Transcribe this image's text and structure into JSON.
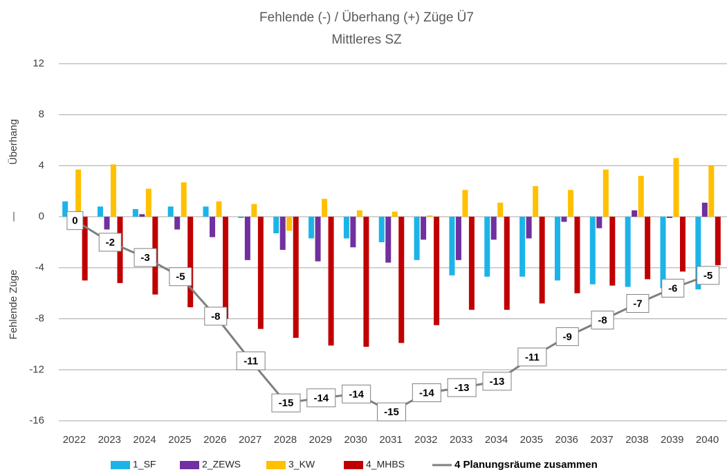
{
  "chart_data": {
    "type": "bar_line",
    "title": "Fehlende (-) / Überhang (+) Züge Ü7",
    "subtitle": "Mittleres SZ",
    "y_label_top": "Überhang",
    "y_label_bottom": "Fehlende Züge",
    "categories": [
      "2022",
      "2023",
      "2024",
      "2025",
      "2026",
      "2027",
      "2028",
      "2029",
      "2030",
      "2031",
      "2032",
      "2033",
      "2034",
      "2035",
      "2036",
      "2037",
      "2038",
      "2039",
      "2040"
    ],
    "series": [
      {
        "name": "1_SF",
        "color": "#1cb4e8",
        "type": "bar",
        "values": [
          1.2,
          0.8,
          0.6,
          0.8,
          0.8,
          -0.1,
          -1.3,
          -1.7,
          -1.7,
          -2.0,
          -3.4,
          -4.6,
          -4.7,
          -4.7,
          -5.0,
          -5.3,
          -5.5,
          -5.6,
          -5.7
        ]
      },
      {
        "name": "2_ZEWS",
        "color": "#7030a0",
        "type": "bar",
        "values": [
          0,
          -1.0,
          0.2,
          -1.0,
          -1.6,
          -3.4,
          -2.6,
          -3.5,
          -2.4,
          -3.6,
          -1.8,
          -3.4,
          -1.8,
          -1.7,
          -0.4,
          -0.9,
          0.5,
          -0.1,
          1.1
        ]
      },
      {
        "name": "3_KW",
        "color": "#ffc000",
        "type": "bar",
        "values": [
          3.7,
          4.1,
          2.2,
          2.7,
          1.2,
          1.0,
          -1.1,
          1.4,
          0.5,
          0.4,
          0.1,
          2.1,
          1.1,
          2.4,
          2.1,
          3.7,
          3.2,
          4.6,
          4.0
        ]
      },
      {
        "name": "4_MHBS",
        "color": "#c00000",
        "type": "bar",
        "values": [
          -5.0,
          -5.2,
          -6.1,
          -7.1,
          -8.0,
          -8.8,
          -9.5,
          -10.1,
          -10.2,
          -9.9,
          -8.5,
          -7.3,
          -7.3,
          -6.8,
          -6.0,
          -5.4,
          -4.9,
          -4.3,
          -3.8
        ]
      },
      {
        "name": "4 Planungsräume zusammen",
        "color": "#7f7f7f",
        "type": "line",
        "values": [
          -0.3,
          -2.0,
          -3.2,
          -4.7,
          -7.8,
          -11.3,
          -14.6,
          -14.2,
          -13.9,
          -15.3,
          -13.8,
          -13.4,
          -12.9,
          -11.0,
          -9.4,
          -8.1,
          -6.8,
          -5.6,
          -4.6
        ],
        "value_labels": [
          "0",
          "-2",
          "-3",
          "-5",
          "-8",
          "-11",
          "-15",
          "-14",
          "-14",
          "-15",
          "-14",
          "-13",
          "-13",
          "-11",
          "-9",
          "-8",
          "-7",
          "-6",
          "-5"
        ]
      }
    ],
    "ylim": [
      -16,
      12
    ],
    "yticks": [
      -16,
      -12,
      -8,
      -4,
      0,
      4,
      8,
      12
    ],
    "grid": true,
    "legend": "bottom"
  }
}
